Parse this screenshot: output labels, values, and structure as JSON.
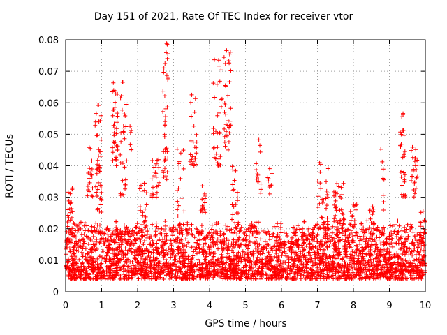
{
  "chart_data": {
    "type": "scatter",
    "title": "Day 151 of 2021, Rate Of TEC Index for receiver vtor",
    "xlabel": "GPS time / hours",
    "ylabel": "ROTI / TECUs",
    "xlim": [
      0,
      10
    ],
    "ylim": [
      0,
      0.08
    ],
    "xticks": [
      0,
      1,
      2,
      3,
      4,
      5,
      6,
      7,
      8,
      9,
      10
    ],
    "yticks": [
      0,
      0.01,
      0.02,
      0.03,
      0.04,
      0.05,
      0.06,
      0.07,
      0.08
    ],
    "xtick_labels": [
      "0",
      "1",
      "2",
      "3",
      "4",
      "5",
      "6",
      "7",
      "8",
      "9",
      "10"
    ],
    "ytick_labels": [
      "0",
      "0.01",
      "0.02",
      "0.03",
      "0.04",
      "0.05",
      "0.06",
      "0.07",
      "0.08"
    ],
    "grid": true,
    "marker": "+",
    "color": "#ff0000",
    "baseline_range": [
      0.004,
      0.02
    ],
    "series": [
      {
        "name": "ROTI",
        "clusters": [
          {
            "x": [
              0.05,
              0.2
            ],
            "y": [
              0.018,
              0.033
            ],
            "n": 30
          },
          {
            "x": [
              0.6,
              0.75
            ],
            "y": [
              0.03,
              0.052
            ],
            "n": 20
          },
          {
            "x": [
              0.8,
              1.0
            ],
            "y": [
              0.025,
              0.06
            ],
            "n": 45
          },
          {
            "x": [
              1.3,
              1.45
            ],
            "y": [
              0.04,
              0.067
            ],
            "n": 35
          },
          {
            "x": [
              1.5,
              1.7
            ],
            "y": [
              0.03,
              0.067
            ],
            "n": 30
          },
          {
            "x": [
              1.75,
              1.85
            ],
            "y": [
              0.045,
              0.056
            ],
            "n": 6
          },
          {
            "x": [
              2.05,
              2.25
            ],
            "y": [
              0.02,
              0.035
            ],
            "n": 20
          },
          {
            "x": [
              2.4,
              2.6
            ],
            "y": [
              0.03,
              0.042
            ],
            "n": 25
          },
          {
            "x": [
              2.7,
              2.85
            ],
            "y": [
              0.035,
              0.08
            ],
            "n": 40
          },
          {
            "x": [
              3.1,
              3.3
            ],
            "y": [
              0.02,
              0.046
            ],
            "n": 20
          },
          {
            "x": [
              3.45,
              3.65
            ],
            "y": [
              0.04,
              0.063
            ],
            "n": 25
          },
          {
            "x": [
              3.75,
              3.9
            ],
            "y": [
              0.025,
              0.035
            ],
            "n": 15
          },
          {
            "x": [
              4.1,
              4.35
            ],
            "y": [
              0.04,
              0.074
            ],
            "n": 35
          },
          {
            "x": [
              4.4,
              4.6
            ],
            "y": [
              0.045,
              0.077
            ],
            "n": 35
          },
          {
            "x": [
              4.6,
              4.8
            ],
            "y": [
              0.02,
              0.042
            ],
            "n": 20
          },
          {
            "x": [
              5.3,
              5.45
            ],
            "y": [
              0.03,
              0.049
            ],
            "n": 15
          },
          {
            "x": [
              5.6,
              5.75
            ],
            "y": [
              0.03,
              0.04
            ],
            "n": 10
          },
          {
            "x": [
              7.0,
              7.3
            ],
            "y": [
              0.02,
              0.042
            ],
            "n": 35
          },
          {
            "x": [
              7.45,
              7.75
            ],
            "y": [
              0.02,
              0.035
            ],
            "n": 40
          },
          {
            "x": [
              7.9,
              8.1
            ],
            "y": [
              0.02,
              0.028
            ],
            "n": 15
          },
          {
            "x": [
              8.45,
              8.6
            ],
            "y": [
              0.02,
              0.027
            ],
            "n": 12
          },
          {
            "x": [
              8.75,
              8.85
            ],
            "y": [
              0.025,
              0.052
            ],
            "n": 8
          },
          {
            "x": [
              9.3,
              9.45
            ],
            "y": [
              0.03,
              0.057
            ],
            "n": 30
          },
          {
            "x": [
              9.6,
              9.8
            ],
            "y": [
              0.03,
              0.047
            ],
            "n": 25
          },
          {
            "x": [
              9.85,
              10.0
            ],
            "y": [
              0.015,
              0.026
            ],
            "n": 12
          }
        ]
      }
    ]
  }
}
